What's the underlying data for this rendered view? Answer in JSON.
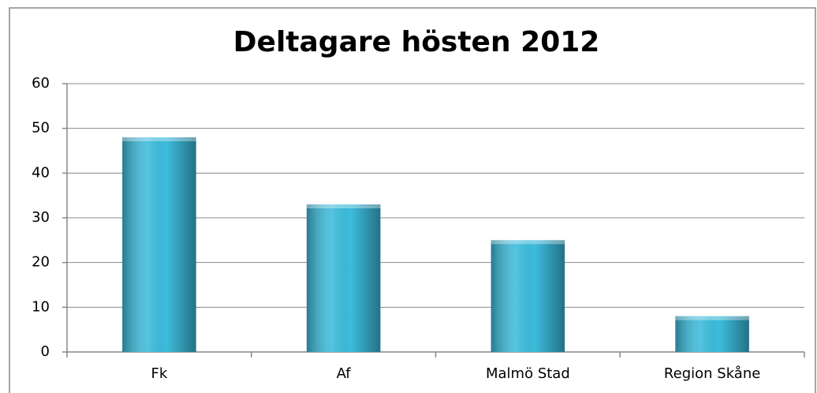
{
  "chart_data": {
    "type": "bar",
    "title": "Deltagare hösten 2012",
    "categories": [
      "Fk",
      "Af",
      "Malmö Stad",
      "Region Skåne"
    ],
    "values": [
      48,
      33,
      25,
      8
    ],
    "color": "#3cbcdc",
    "ylim": [
      0,
      60
    ],
    "yticks": [
      0,
      10,
      20,
      30,
      40,
      50,
      60
    ],
    "grid": true
  }
}
